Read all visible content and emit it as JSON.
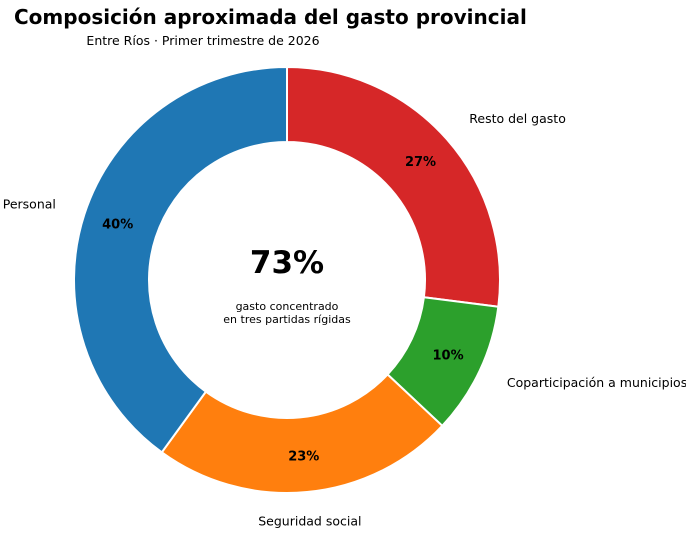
{
  "chart_data": {
    "type": "pie",
    "variant": "donut",
    "title": "Composición aproximada del gasto provincial",
    "subtitle": "Entre Ríos · Primer trimestre de 2026",
    "start_angle_deg": 90,
    "direction": "clockwise",
    "slices": [
      {
        "label": "Resto del gasto",
        "value": 27,
        "value_label": "27%",
        "color": "#d62728"
      },
      {
        "label": "Coparticipación a municipios",
        "value": 10,
        "value_label": "10%",
        "color": "#2ca02c"
      },
      {
        "label": "Seguridad social",
        "value": 23,
        "value_label": "23%",
        "color": "#ff7f0e"
      },
      {
        "label": "Personal",
        "value": 40,
        "value_label": "40%",
        "color": "#1f77b4"
      }
    ],
    "center_value": "73%",
    "center_caption": [
      "gasto concentrado",
      "en tres partidas rígidas"
    ],
    "legend": "none",
    "grid": false
  }
}
